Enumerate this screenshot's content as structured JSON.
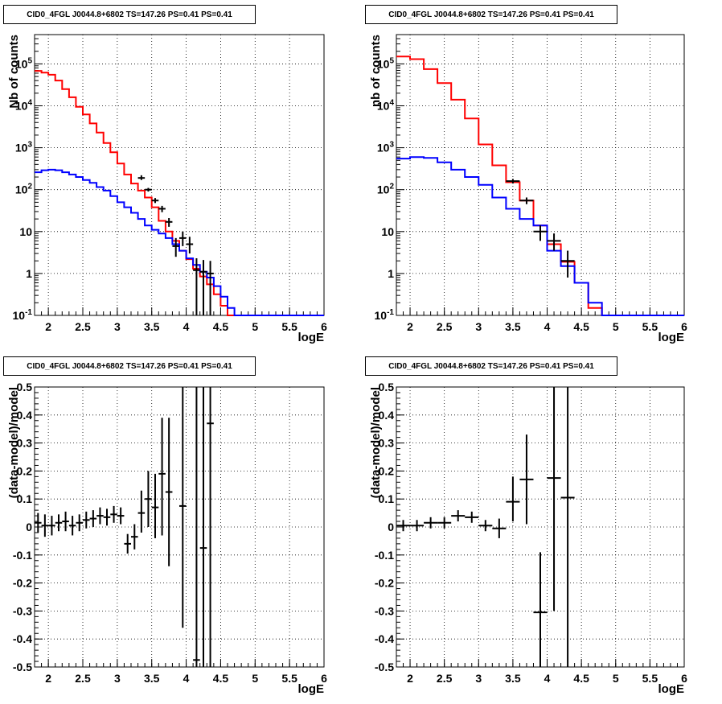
{
  "chart_data": [
    {
      "type": "line",
      "title": "CID0_4FGL J0044.8+6802 TS=147.26 PS=0.41 PS=0.41",
      "xlabel": "logE",
      "ylabel": "Nb of counts",
      "xlim": [
        1.8,
        6.0
      ],
      "ylim": [
        0.1,
        500000
      ],
      "yscale": "log",
      "grid": true,
      "xticks": [
        "2",
        "2.5",
        "3",
        "3.5",
        "4",
        "4.5",
        "5",
        "5.5",
        "6"
      ],
      "yticks": [
        "10^-1",
        "1",
        "10",
        "10^2",
        "10^3",
        "10^4",
        "10^5"
      ],
      "bin_width": 0.1,
      "series": [
        {
          "color": "#ff0000",
          "style": "step",
          "x": [
            1.85,
            1.95,
            2.05,
            2.15,
            2.25,
            2.35,
            2.45,
            2.55,
            2.65,
            2.75,
            2.85,
            2.95,
            3.05,
            3.15,
            3.25,
            3.35,
            3.45,
            3.55,
            3.65,
            3.75,
            3.85,
            3.95,
            4.05,
            4.15,
            4.25,
            4.35,
            4.45,
            4.55,
            4.65,
            4.75,
            4.85,
            4.95,
            5.05,
            5.15,
            5.25,
            5.35,
            5.45,
            5.55,
            5.65,
            5.75,
            5.85,
            5.95
          ],
          "values": [
            68000,
            62000,
            55000,
            40000,
            25000,
            16000,
            9500,
            6200,
            3800,
            2300,
            1300,
            780,
            420,
            230,
            140,
            95,
            65,
            38,
            18,
            10,
            6,
            3.5,
            2.2,
            1.3,
            0.85,
            0.55,
            0.32,
            0.17,
            0.1,
            0.1,
            0.1,
            0.1,
            0.1,
            0.1,
            0.1,
            0.1,
            0.1,
            0.1,
            0.1,
            0.1,
            0.1,
            0.1
          ]
        },
        {
          "color": "#0000ff",
          "style": "step",
          "x": [
            1.85,
            1.95,
            2.05,
            2.15,
            2.25,
            2.35,
            2.45,
            2.55,
            2.65,
            2.75,
            2.85,
            2.95,
            3.05,
            3.15,
            3.25,
            3.35,
            3.45,
            3.55,
            3.65,
            3.75,
            3.85,
            3.95,
            4.05,
            4.15,
            4.25,
            4.35,
            4.45,
            4.55,
            4.65,
            4.75,
            4.85,
            4.95,
            5.05,
            5.15,
            5.25,
            5.35,
            5.45,
            5.55,
            5.65,
            5.75,
            5.85,
            5.95
          ],
          "values": [
            260,
            290,
            300,
            290,
            260,
            230,
            200,
            170,
            145,
            115,
            95,
            70,
            50,
            38,
            28,
            20,
            14,
            11,
            9,
            7,
            5,
            3.5,
            2.3,
            1.6,
            1.1,
            0.8,
            0.5,
            0.28,
            0.15,
            0.1,
            0.1,
            0.1,
            0.1,
            0.1,
            0.1,
            0.1,
            0.1,
            0.1,
            0.1,
            0.1,
            0.1,
            0.1
          ]
        },
        {
          "color": "#000000",
          "style": "errorbar",
          "x": [
            3.35,
            3.45,
            3.55,
            3.65,
            3.75,
            3.85,
            3.95,
            4.05,
            4.15,
            4.25,
            4.35
          ],
          "values": [
            190,
            100,
            55,
            35,
            17,
            4.5,
            7,
            5,
            1.2,
            1.1,
            1
          ],
          "yerr_lo": [
            170,
            90,
            48,
            29,
            13,
            2.5,
            4.5,
            3,
            0.1,
            0.1,
            0.1
          ],
          "yerr_hi": [
            220,
            110,
            63,
            41,
            21,
            7,
            10,
            7.5,
            2.3,
            2.1,
            2
          ]
        }
      ]
    },
    {
      "type": "line",
      "title": "CID0_4FGL J0044.8+6802 TS=147.26 PS=0.41 PS=0.41",
      "xlabel": "logE",
      "ylabel": "nb of counts",
      "xlim": [
        1.8,
        6.0
      ],
      "ylim": [
        0.1,
        500000
      ],
      "yscale": "log",
      "grid": true,
      "xticks": [
        "2",
        "2.5",
        "3",
        "3.5",
        "4",
        "4.5",
        "5",
        "5.5",
        "6"
      ],
      "yticks": [
        "10^-1",
        "1",
        "10",
        "10^2",
        "10^3",
        "10^4",
        "10^5"
      ],
      "bin_width": 0.2,
      "series": [
        {
          "color": "#ff0000",
          "style": "step",
          "x": [
            1.9,
            2.1,
            2.3,
            2.5,
            2.7,
            2.9,
            3.1,
            3.3,
            3.5,
            3.7,
            3.9,
            4.1,
            4.3,
            4.5,
            4.7,
            4.9,
            5.1,
            5.3,
            5.5,
            5.7,
            5.9
          ],
          "values": [
            150000,
            130000,
            75000,
            35000,
            14000,
            5000,
            1200,
            380,
            150,
            55,
            14,
            5,
            1.9,
            0.6,
            0.15,
            0.1,
            0.1,
            0.1,
            0.1,
            0.1,
            0.1
          ]
        },
        {
          "color": "#0000ff",
          "style": "step",
          "x": [
            1.9,
            2.1,
            2.3,
            2.5,
            2.7,
            2.9,
            3.1,
            3.3,
            3.5,
            3.7,
            3.9,
            4.1,
            4.3,
            4.5,
            4.7,
            4.9,
            5.1,
            5.3,
            5.5,
            5.7,
            5.9
          ],
          "values": [
            550,
            600,
            570,
            450,
            300,
            200,
            130,
            65,
            35,
            20,
            14,
            3.5,
            1.5,
            0.6,
            0.2,
            0.1,
            0.1,
            0.1,
            0.1,
            0.1,
            0.1
          ]
        },
        {
          "color": "#000000",
          "style": "errorbar",
          "x": [
            3.5,
            3.7,
            3.9,
            4.1,
            4.3
          ],
          "values": [
            160,
            55,
            10,
            6,
            2
          ],
          "yerr_lo": [
            140,
            45,
            6,
            3.5,
            0.8
          ],
          "yerr_hi": [
            180,
            65,
            14,
            9,
            3.5
          ]
        }
      ]
    },
    {
      "type": "scatter",
      "title": "CID0_4FGL J0044.8+6802 TS=147.26 PS=0.41 PS=0.41",
      "xlabel": "logE",
      "ylabel": "(data-model)/model",
      "xlim": [
        1.8,
        6.0
      ],
      "ylim": [
        -0.5,
        0.5
      ],
      "grid": true,
      "xticks": [
        "2",
        "2.5",
        "3",
        "3.5",
        "4",
        "4.5",
        "5",
        "5.5",
        "6"
      ],
      "yticks": [
        "-0.5",
        "-0.4",
        "-0.3",
        "-0.2",
        "-0.1",
        "0",
        "0.1",
        "0.2",
        "0.3",
        "0.4",
        "0.5"
      ],
      "bin_width": 0.1,
      "series": [
        {
          "color": "#000000",
          "style": "errorbar",
          "x": [
            1.85,
            1.95,
            2.05,
            2.15,
            2.25,
            2.35,
            2.45,
            2.55,
            2.65,
            2.75,
            2.85,
            2.95,
            3.05,
            3.15,
            3.25,
            3.35,
            3.45,
            3.55,
            3.65,
            3.75,
            3.95,
            4.15,
            4.25,
            4.35
          ],
          "values": [
            0.015,
            0.005,
            0.005,
            0.015,
            0.02,
            0.005,
            0.015,
            0.025,
            0.03,
            0.04,
            0.035,
            0.045,
            0.04,
            -0.06,
            -0.035,
            0.05,
            0.1,
            0.07,
            0.19,
            0.125,
            0.075,
            -0.475,
            -0.075,
            0.37
          ],
          "yerr_lo": [
            -0.02,
            -0.035,
            -0.03,
            -0.015,
            -0.015,
            -0.03,
            -0.015,
            -0.005,
            0.0,
            0.01,
            0.005,
            0.015,
            0.01,
            -0.095,
            -0.08,
            -0.02,
            0.0,
            -0.04,
            -0.03,
            -0.14,
            -0.36,
            -0.5,
            -0.5,
            -0.5
          ],
          "yerr_hi": [
            0.05,
            0.045,
            0.04,
            0.045,
            0.055,
            0.04,
            0.045,
            0.055,
            0.06,
            0.07,
            0.065,
            0.075,
            0.07,
            -0.025,
            0.01,
            0.13,
            0.2,
            0.19,
            0.39,
            0.39,
            0.5,
            0.5,
            0.5,
            0.5
          ]
        }
      ]
    },
    {
      "type": "scatter",
      "title": "CID0_4FGL J0044.8+6802 TS=147.26 PS=0.41 PS=0.41",
      "xlabel": "logE",
      "ylabel": "(data-model)/model",
      "xlim": [
        1.8,
        6.0
      ],
      "ylim": [
        -0.5,
        0.5
      ],
      "grid": true,
      "xticks": [
        "2",
        "2.5",
        "3",
        "3.5",
        "4",
        "4.5",
        "5",
        "5.5",
        "6"
      ],
      "yticks": [
        "-0.5",
        "-0.4",
        "-0.3",
        "-0.2",
        "-0.1",
        "0",
        "0.1",
        "0.2",
        "0.3",
        "0.4",
        "0.5"
      ],
      "bin_width": 0.2,
      "series": [
        {
          "color": "#000000",
          "style": "errorbar",
          "x": [
            1.9,
            2.1,
            2.3,
            2.5,
            2.7,
            2.9,
            3.1,
            3.3,
            3.5,
            3.7,
            3.9,
            4.1,
            4.3
          ],
          "values": [
            0.005,
            0.005,
            0.015,
            0.015,
            0.04,
            0.035,
            0.005,
            -0.005,
            0.09,
            0.17,
            -0.305,
            0.175,
            0.105
          ],
          "yerr_lo": [
            -0.015,
            -0.015,
            -0.005,
            -0.005,
            0.02,
            0.015,
            -0.015,
            -0.04,
            0.02,
            0.01,
            -0.5,
            -0.3,
            -0.5
          ],
          "yerr_hi": [
            0.025,
            0.025,
            0.035,
            0.035,
            0.06,
            0.055,
            0.025,
            0.03,
            0.18,
            0.33,
            -0.09,
            0.5,
            0.5
          ]
        }
      ]
    }
  ]
}
